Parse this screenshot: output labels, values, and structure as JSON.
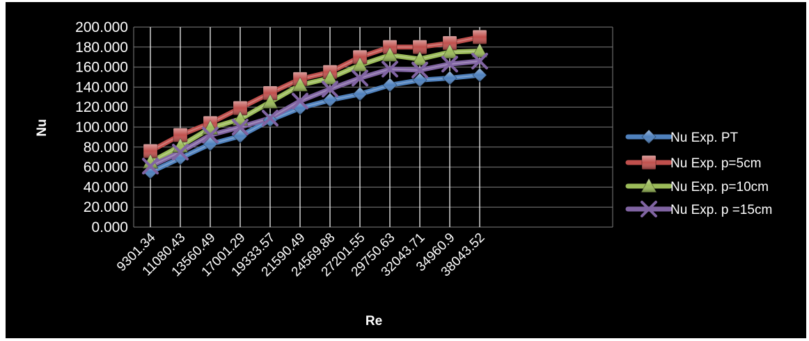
{
  "chart_data": {
    "type": "line",
    "title": "",
    "xlabel": "Re",
    "ylabel": "Nu",
    "categories": [
      "9301.34",
      "11080.43",
      "13560.49",
      "17001.29",
      "19333.57",
      "21590.49",
      "24569.88",
      "27201.55",
      "29750.63",
      "32043.71",
      "34960.9",
      "38043.52"
    ],
    "ylim": [
      0,
      200
    ],
    "ytick_step": 20,
    "ytick_labels": [
      "0.000",
      "20.000",
      "40.000",
      "60.000",
      "80.000",
      "100.000",
      "120.000",
      "140.000",
      "160.000",
      "180.000",
      "200.000"
    ],
    "grid": true,
    "legend_position": "right",
    "series": [
      {
        "name": "Nu Exp. PT",
        "color": "#4f81bd",
        "marker": "diamond",
        "values": [
          55,
          69,
          83,
          91,
          107,
          119,
          127,
          133,
          142,
          147,
          149,
          152
        ]
      },
      {
        "name": "Nu Exp. p=5cm",
        "color": "#c0504d",
        "marker": "square",
        "values": [
          76,
          92,
          104,
          119,
          134,
          148,
          155,
          170,
          180,
          180,
          184,
          190
        ]
      },
      {
        "name": "Nu Exp. p=10cm",
        "color": "#9bbb59",
        "marker": "triangle",
        "values": [
          65,
          81,
          99,
          108,
          125,
          142,
          149,
          162,
          172,
          168,
          175,
          176
        ]
      },
      {
        "name": "Nu Exp. p =15cm",
        "color": "#8064a2",
        "marker": "x",
        "values": [
          61,
          75,
          92,
          100,
          109,
          126,
          138,
          149,
          158,
          157,
          163,
          166
        ]
      }
    ]
  }
}
